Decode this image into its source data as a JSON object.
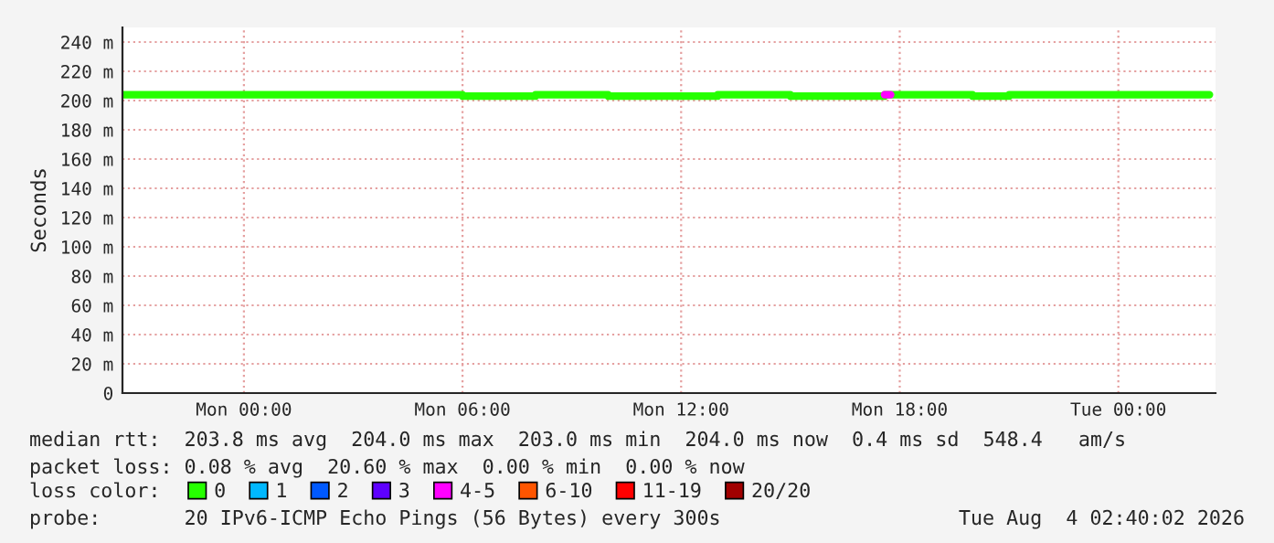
{
  "chart_data": {
    "type": "step",
    "ylabel": "Seconds",
    "legend_title": "loss color:",
    "legend": "bottom",
    "grid": true,
    "line_style": "solid",
    "marker": "none",
    "xlim": [
      "2026-08-02T20:40",
      "2026-08-04T02:40"
    ],
    "xticks": [
      {
        "value": "2026-08-03T00:00",
        "label": "Mon 00:00"
      },
      {
        "value": "2026-08-03T06:00",
        "label": "Mon 06:00"
      },
      {
        "value": "2026-08-03T12:00",
        "label": "Mon 12:00"
      },
      {
        "value": "2026-08-03T18:00",
        "label": "Mon 18:00"
      },
      {
        "value": "2026-08-04T00:00",
        "label": "Tue 00:00"
      }
    ],
    "ylim": [
      0,
      250
    ],
    "yticks": [
      {
        "value": 0,
        "label": "0"
      },
      {
        "value": 20,
        "label": "20 m"
      },
      {
        "value": 40,
        "label": "40 m"
      },
      {
        "value": 60,
        "label": "60 m"
      },
      {
        "value": 80,
        "label": "80 m"
      },
      {
        "value": 100,
        "label": "100 m"
      },
      {
        "value": 120,
        "label": "120 m"
      },
      {
        "value": 140,
        "label": "140 m"
      },
      {
        "value": 160,
        "label": "160 m"
      },
      {
        "value": 180,
        "label": "180 m"
      },
      {
        "value": 200,
        "label": "200 m"
      },
      {
        "value": 220,
        "label": "220 m"
      },
      {
        "value": 240,
        "label": "240 m"
      }
    ],
    "x": [
      "2026-08-02T20:40",
      "2026-08-02T23:00",
      "2026-08-03T02:00",
      "2026-08-03T06:00",
      "2026-08-03T08:00",
      "2026-08-03T10:00",
      "2026-08-03T13:00",
      "2026-08-03T15:00",
      "2026-08-03T17:35",
      "2026-08-03T17:45",
      "2026-08-03T20:00",
      "2026-08-03T21:00",
      "2026-08-04T02:30"
    ],
    "series": [
      {
        "name": "0",
        "color": "#26ff00",
        "values": [
          204,
          204,
          204,
          203,
          204,
          203,
          204,
          203,
          204,
          204,
          203,
          204,
          204
        ]
      },
      {
        "name": "1",
        "color": "#00b8ff",
        "values": [
          null,
          null,
          null,
          null,
          null,
          null,
          null,
          null,
          null,
          null,
          null,
          null,
          null
        ]
      },
      {
        "name": "2",
        "color": "#0059ff",
        "values": [
          null,
          null,
          null,
          null,
          null,
          null,
          null,
          null,
          null,
          null,
          null,
          null,
          null
        ]
      },
      {
        "name": "3",
        "color": "#5e00ff",
        "values": [
          null,
          null,
          null,
          null,
          null,
          null,
          null,
          null,
          null,
          null,
          null,
          null,
          null
        ]
      },
      {
        "name": "4-5",
        "color": "#ff00ff",
        "x": [
          "2026-08-03T17:35",
          "2026-08-03T17:45"
        ],
        "values": [
          204,
          204
        ]
      },
      {
        "name": "6-10",
        "color": "#ff5500",
        "values": [
          null,
          null,
          null,
          null,
          null,
          null,
          null,
          null,
          null,
          null,
          null,
          null,
          null
        ]
      },
      {
        "name": "11-19",
        "color": "#ff0000",
        "values": [
          null,
          null,
          null,
          null,
          null,
          null,
          null,
          null,
          null,
          null,
          null,
          null,
          null
        ]
      },
      {
        "name": "20/20",
        "color": "#a10000",
        "values": [
          null,
          null,
          null,
          null,
          null,
          null,
          null,
          null,
          null,
          null,
          null,
          null,
          null
        ]
      }
    ],
    "annotations": [
      "median rtt:  203.8 ms avg  204.0 ms max  203.0 ms min  204.0 ms now  0.4 ms sd  548.4   am/s",
      "packet loss: 0.08 % avg  20.60 % max  0.00 % min  0.00 % now",
      "probe:       20 IPv6-ICMP Echo Pings (56 Bytes) every 300s",
      "Tue Aug  4 02:40:02 2026"
    ]
  }
}
